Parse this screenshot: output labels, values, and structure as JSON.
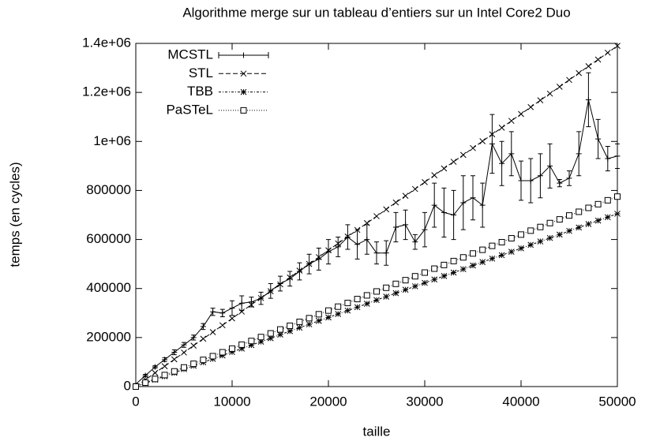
{
  "chart_data": {
    "type": "line",
    "title": "Algorithme merge sur un tableau d’entiers sur un Intel Core2 Duo",
    "xlabel": "taille",
    "ylabel": "temps (en cycles)",
    "xlim": [
      0,
      50000
    ],
    "ylim": [
      0,
      1400000
    ],
    "xticks": [
      0,
      10000,
      20000,
      30000,
      40000,
      50000
    ],
    "yticks": [
      0,
      200000,
      400000,
      600000,
      800000,
      {
        "value": 1000000,
        "label": "1e+06"
      },
      {
        "value": 1200000,
        "label": "1.2e+06"
      },
      {
        "value": 1400000,
        "label": "1.4e+06"
      }
    ],
    "legend": "top-left",
    "x": [
      0,
      1000,
      2000,
      3000,
      4000,
      5000,
      6000,
      7000,
      8000,
      9000,
      10000,
      11000,
      12000,
      13000,
      14000,
      15000,
      16000,
      17000,
      18000,
      19000,
      20000,
      21000,
      22000,
      23000,
      24000,
      25000,
      26000,
      27000,
      28000,
      29000,
      30000,
      31000,
      32000,
      33000,
      34000,
      35000,
      36000,
      37000,
      38000,
      39000,
      40000,
      41000,
      42000,
      43000,
      44000,
      45000,
      46000,
      47000,
      48000,
      49000,
      50000
    ],
    "series": [
      {
        "name": "MCSTL",
        "color": "#000000",
        "marker": "plus",
        "dash": "none",
        "values": [
          10000,
          45000,
          80000,
          110000,
          140000,
          170000,
          200000,
          245000,
          305000,
          300000,
          320000,
          340000,
          345000,
          360000,
          390000,
          420000,
          440000,
          470000,
          500000,
          520000,
          550000,
          570000,
          610000,
          580000,
          600000,
          545000,
          545000,
          650000,
          660000,
          590000,
          640000,
          740000,
          710000,
          700000,
          750000,
          770000,
          740000,
          990000,
          910000,
          950000,
          840000,
          840000,
          860000,
          900000,
          830000,
          850000,
          950000,
          1170000,
          1010000,
          930000,
          940000
        ],
        "errors": [
          2000,
          5000,
          5000,
          8000,
          10000,
          10000,
          10000,
          12000,
          15000,
          15000,
          30000,
          30000,
          20000,
          25000,
          30000,
          30000,
          30000,
          35000,
          40000,
          45000,
          50000,
          40000,
          50000,
          60000,
          60000,
          45000,
          50000,
          60000,
          60000,
          30000,
          70000,
          90000,
          100000,
          100000,
          110000,
          90000,
          90000,
          120000,
          90000,
          90000,
          80000,
          90000,
          90000,
          90000,
          15000,
          30000,
          90000,
          110000,
          80000,
          50000,
          50000
        ]
      },
      {
        "name": "STL",
        "color": "#000000",
        "marker": "cross",
        "dash": "6 3",
        "values": [
          0,
          28000,
          56000,
          83000,
          111000,
          139000,
          167000,
          195000,
          222000,
          250000,
          278000,
          306000,
          334000,
          361000,
          389000,
          417000,
          445000,
          473000,
          500000,
          528000,
          556000,
          584000,
          612000,
          639000,
          667000,
          695000,
          723000,
          751000,
          778000,
          806000,
          834000,
          862000,
          890000,
          917000,
          945000,
          973000,
          1001000,
          1029000,
          1056000,
          1084000,
          1112000,
          1140000,
          1168000,
          1195000,
          1223000,
          1251000,
          1279000,
          1307000,
          1334000,
          1362000,
          1390000
        ]
      },
      {
        "name": "TBB",
        "color": "#000000",
        "marker": "star",
        "dash": "3 2 1 2",
        "values": [
          0,
          14000,
          28000,
          42000,
          56000,
          71000,
          85000,
          99000,
          113000,
          127000,
          141000,
          155000,
          169000,
          183000,
          197000,
          212000,
          226000,
          240000,
          254000,
          268000,
          282000,
          296000,
          310000,
          324000,
          338000,
          353000,
          367000,
          381000,
          395000,
          409000,
          423000,
          437000,
          451000,
          465000,
          479000,
          494000,
          508000,
          522000,
          536000,
          550000,
          564000,
          578000,
          592000,
          606000,
          620000,
          635000,
          649000,
          663000,
          677000,
          691000,
          705000
        ]
      },
      {
        "name": "PaSTeL",
        "color": "#000000",
        "marker": "square",
        "dash": "1 2",
        "values": [
          0,
          16000,
          31000,
          47000,
          62000,
          78000,
          93000,
          109000,
          124000,
          140000,
          155000,
          171000,
          186000,
          202000,
          217000,
          233000,
          248000,
          264000,
          279000,
          295000,
          310000,
          326000,
          341000,
          357000,
          372000,
          388000,
          403000,
          419000,
          434000,
          450000,
          465000,
          481000,
          496000,
          512000,
          527000,
          543000,
          558000,
          574000,
          589000,
          605000,
          620000,
          636000,
          651000,
          667000,
          682000,
          698000,
          713000,
          729000,
          744000,
          760000,
          775000
        ]
      }
    ]
  }
}
